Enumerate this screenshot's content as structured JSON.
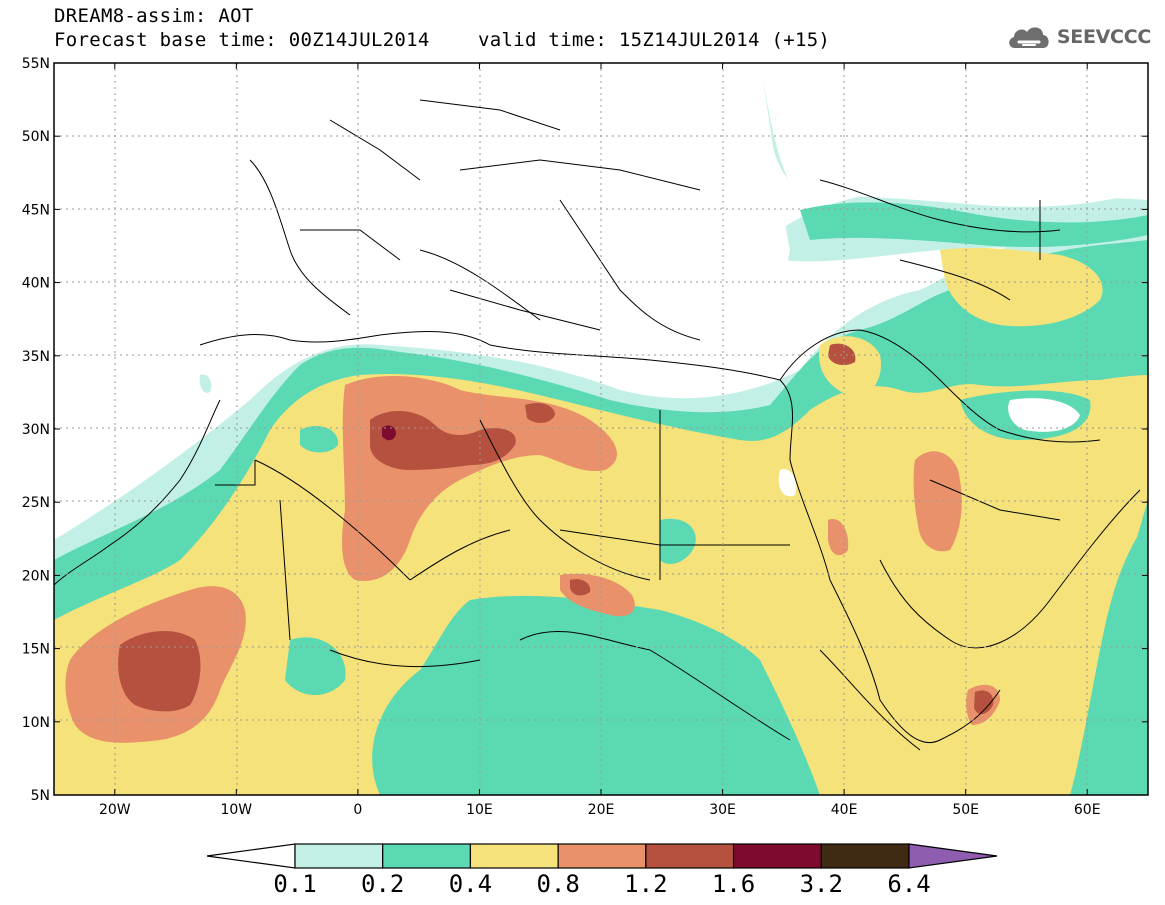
{
  "title": {
    "line1": "DREAM8-assim: AOT",
    "forecast_base": "Forecast base time: 00Z14JUL2014",
    "valid": "valid time: 15Z14JUL2014 (+15)"
  },
  "logo": {
    "text": "SEEVCCC",
    "icon": "cloud-icon"
  },
  "map": {
    "lat_labels": [
      "55N",
      "50N",
      "45N",
      "40N",
      "35N",
      "30N",
      "25N",
      "20N",
      "15N",
      "10N",
      "5N"
    ],
    "lon_labels": [
      "20W",
      "10W",
      "0",
      "10E",
      "20E",
      "30E",
      "40E",
      "50E",
      "60E"
    ],
    "lat_range": [
      5,
      55
    ],
    "lon_range": [
      -25,
      65
    ]
  },
  "colorbar": {
    "labels": [
      "0.1",
      "0.2",
      "0.4",
      "0.8",
      "1.2",
      "1.6",
      "3.2",
      "6.4"
    ],
    "colors": [
      "#ffffff",
      "#c2f0e6",
      "#5ad9b3",
      "#f5e27a",
      "#e8916a",
      "#b5513e",
      "#7e0a2e",
      "#3f2a14",
      "#8e5db0"
    ]
  },
  "chart_data": {
    "type": "heatmap",
    "title": "DREAM8-assim: AOT",
    "xlabel": "",
    "ylabel": "",
    "x_range": [
      -25,
      65
    ],
    "y_range": [
      5,
      55
    ],
    "levels": [
      0.1,
      0.2,
      0.4,
      0.8,
      1.2,
      1.6,
      3.2,
      6.4
    ]
  }
}
